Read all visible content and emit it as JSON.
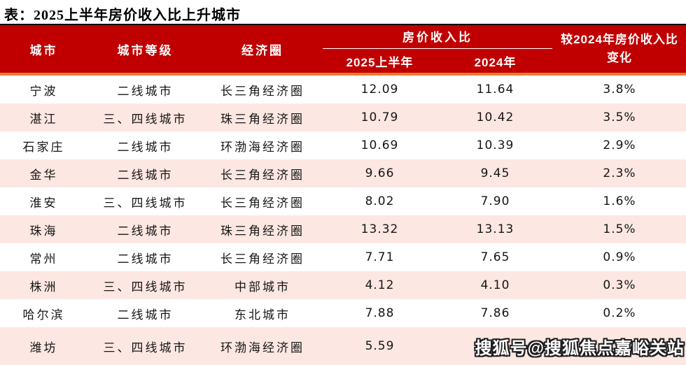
{
  "title": "表：2025上半年房价收入比上升城市",
  "table": {
    "headers": {
      "city": "城市",
      "tier": "城市等级",
      "region": "经济圈",
      "ratio_group": "房价收入比",
      "ratio_2025h1": "2025上半年",
      "ratio_2024": "2024年",
      "change": "较2024年房价收入比变化"
    },
    "rows": [
      {
        "city": "宁波",
        "tier": "二线城市",
        "region": "长三角经济圈",
        "ratio_2025h1": "12.09",
        "ratio_2024": "11.64",
        "change": "3.8%"
      },
      {
        "city": "湛江",
        "tier": "三、四线城市",
        "region": "珠三角经济圈",
        "ratio_2025h1": "10.79",
        "ratio_2024": "10.42",
        "change": "3.5%"
      },
      {
        "city": "石家庄",
        "tier": "二线城市",
        "region": "环渤海经济圈",
        "ratio_2025h1": "10.69",
        "ratio_2024": "10.39",
        "change": "2.9%"
      },
      {
        "city": "金华",
        "tier": "二线城市",
        "region": "长三角经济圈",
        "ratio_2025h1": "9.66",
        "ratio_2024": "9.45",
        "change": "2.3%"
      },
      {
        "city": "淮安",
        "tier": "三、四线城市",
        "region": "长三角经济圈",
        "ratio_2025h1": "8.02",
        "ratio_2024": "7.90",
        "change": "1.6%"
      },
      {
        "city": "珠海",
        "tier": "二线城市",
        "region": "珠三角经济圈",
        "ratio_2025h1": "13.32",
        "ratio_2024": "13.13",
        "change": "1.5%"
      },
      {
        "city": "常州",
        "tier": "二线城市",
        "region": "长三角经济圈",
        "ratio_2025h1": "7.71",
        "ratio_2024": "7.65",
        "change": "0.9%"
      },
      {
        "city": "株洲",
        "tier": "三、四线城市",
        "region": "中部城市",
        "ratio_2025h1": "4.12",
        "ratio_2024": "4.10",
        "change": "0.3%"
      },
      {
        "city": "哈尔滨",
        "tier": "二线城市",
        "region": "东北城市",
        "ratio_2025h1": "7.88",
        "ratio_2024": "7.86",
        "change": "0.2%"
      },
      {
        "city": "潍坊",
        "tier": "三、四线城市",
        "region": "环渤海经济圈",
        "ratio_2025h1": "5.59",
        "ratio_2024": "5.58",
        "change": "0.2%"
      }
    ]
  },
  "watermark": "搜狐号@搜狐焦点嘉峪关站",
  "colors": {
    "header_red": "#c00000",
    "accent_orange": "#ed7d31",
    "row_pink": "#fce7e2",
    "top_rule_black": "#000000",
    "header_text": "#ffffff",
    "body_text": "#151515"
  },
  "chart_data": {
    "type": "table",
    "title": "表：2025上半年房价收入比上升城市",
    "columns": [
      "城市",
      "城市等级",
      "经济圈",
      "房价收入比 2025上半年",
      "房价收入比 2024年",
      "较2024年房价收入比变化"
    ],
    "rows": [
      [
        "宁波",
        "二线城市",
        "长三角经济圈",
        12.09,
        11.64,
        "3.8%"
      ],
      [
        "湛江",
        "三、四线城市",
        "珠三角经济圈",
        10.79,
        10.42,
        "3.5%"
      ],
      [
        "石家庄",
        "二线城市",
        "环渤海经济圈",
        10.69,
        10.39,
        "2.9%"
      ],
      [
        "金华",
        "二线城市",
        "长三角经济圈",
        9.66,
        9.45,
        "2.3%"
      ],
      [
        "淮安",
        "三、四线城市",
        "长三角经济圈",
        8.02,
        7.9,
        "1.6%"
      ],
      [
        "珠海",
        "二线城市",
        "珠三角经济圈",
        13.32,
        13.13,
        "1.5%"
      ],
      [
        "常州",
        "二线城市",
        "长三角经济圈",
        7.71,
        7.65,
        "0.9%"
      ],
      [
        "株洲",
        "三、四线城市",
        "中部城市",
        4.12,
        4.1,
        "0.3%"
      ],
      [
        "哈尔滨",
        "二线城市",
        "东北城市",
        7.88,
        7.86,
        "0.2%"
      ],
      [
        "潍坊",
        "三、四线城市",
        "环渤海经济圈",
        5.59,
        5.58,
        "0.2%"
      ]
    ]
  }
}
